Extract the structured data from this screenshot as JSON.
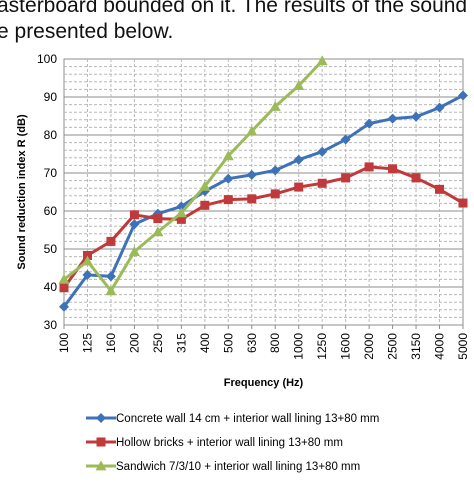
{
  "document": {
    "line1": "asterboard bounded on it. The results of the sound",
    "line2": "e presented below."
  },
  "chart_data": {
    "type": "line",
    "title": "",
    "xlabel": "Frequency (Hz)",
    "ylabel": "Sound reduction index R (dB)",
    "ylim": [
      30,
      100
    ],
    "yticks": [
      30,
      40,
      50,
      60,
      70,
      80,
      90,
      100
    ],
    "grid": true,
    "legend_position": "bottom",
    "categories": [
      "100",
      "125",
      "160",
      "200",
      "250",
      "315",
      "400",
      "500",
      "630",
      "800",
      "1000",
      "1250",
      "1600",
      "2000",
      "2500",
      "3150",
      "4000",
      "5000"
    ],
    "series": [
      {
        "name": "Concrete wall 14 cm + interior wall lining 13+80 mm",
        "color": "#3d71b8",
        "marker": "diamond",
        "values": [
          34.8,
          43.2,
          42.8,
          56.5,
          59.3,
          61.2,
          65.2,
          68.5,
          69.5,
          70.7,
          73.5,
          75.6,
          78.8,
          83.0,
          84.3,
          84.8,
          87.2,
          90.4
        ]
      },
      {
        "name": "Hollow bricks + interior wall lining 13+80 mm",
        "color": "#c0393b",
        "marker": "square",
        "values": [
          39.8,
          48.3,
          52.0,
          59.0,
          58.0,
          57.8,
          61.5,
          63.0,
          63.2,
          64.5,
          66.3,
          67.3,
          68.7,
          71.6,
          71.1,
          68.7,
          65.7,
          62.1
        ]
      },
      {
        "name": "Sandwich 7/3/10 + interior wall lining 13+80 mm",
        "color": "#9bbb59",
        "marker": "triangle",
        "values": [
          42.0,
          46.8,
          39.0,
          49.3,
          54.5,
          59.5,
          66.5,
          74.5,
          81.0,
          87.5,
          93.0,
          99.5,
          null,
          null,
          null,
          null,
          null,
          null
        ]
      }
    ]
  }
}
